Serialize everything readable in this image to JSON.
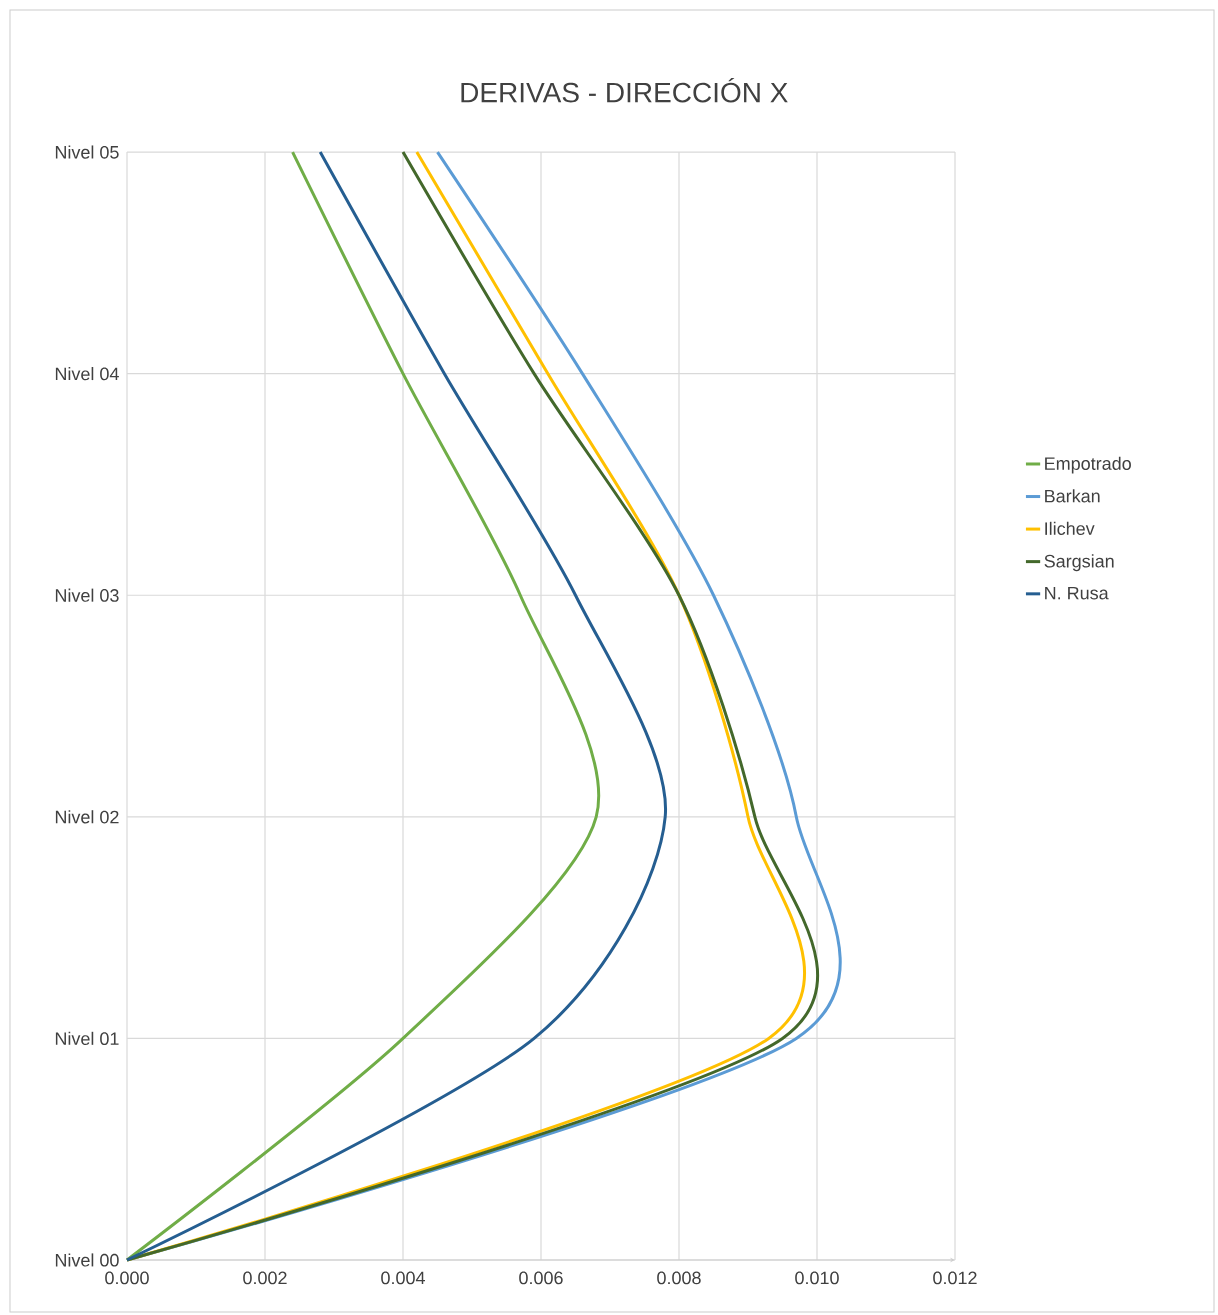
{
  "chart_data": {
    "type": "line",
    "title": "DERIVAS - DIRECCIÓN X",
    "orientation": "horizontal",
    "categories": [
      "Nivel 05",
      "Nivel 04",
      "Nivel 03",
      "Nivel 02",
      "Nivel 01",
      "Nivel 00"
    ],
    "xlim": [
      0,
      0.012
    ],
    "xticks": [
      {
        "value": 0,
        "label": "0.000"
      },
      {
        "value": 0.002,
        "label": "0.002"
      },
      {
        "value": 0.004,
        "label": "0.004"
      },
      {
        "value": 0.006,
        "label": "0.006"
      },
      {
        "value": 0.008,
        "label": "0.008"
      },
      {
        "value": 0.01,
        "label": "0.010"
      },
      {
        "value": 0.012,
        "label": "0.012"
      }
    ],
    "grid": true,
    "legend": "right",
    "marker": "none",
    "line_style": "solid",
    "series": [
      {
        "name": "Empotrado",
        "color": "#70ad47",
        "values": [
          0.0024,
          0.004,
          0.0057,
          0.0068,
          0.004,
          0
        ]
      },
      {
        "name": "Barkan",
        "color": "#5b9bd5",
        "values": [
          0.0045,
          0.0066,
          0.0085,
          0.0097,
          0.0097,
          0
        ]
      },
      {
        "name": "Ilichev",
        "color": "#ffc000",
        "values": [
          0.0042,
          0.0061,
          0.008,
          0.009,
          0.0093,
          0
        ]
      },
      {
        "name": "Sargsian",
        "color": "#43682b",
        "values": [
          0.004,
          0.0059,
          0.008,
          0.0091,
          0.0095,
          0
        ]
      },
      {
        "name": "N. Rusa",
        "color": "#255e91",
        "values": [
          0.0028,
          0.0046,
          0.0065,
          0.0078,
          0.0059,
          0
        ]
      }
    ]
  }
}
